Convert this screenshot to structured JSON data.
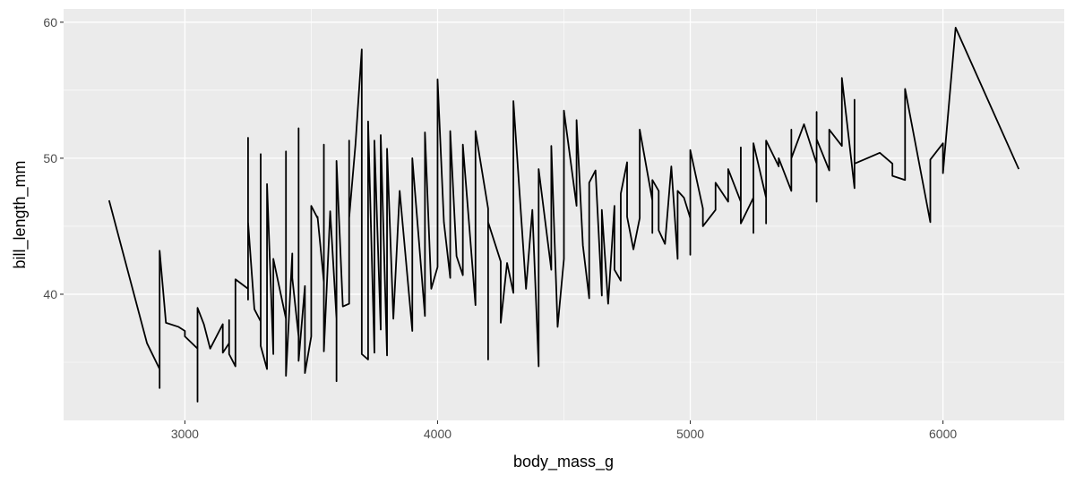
{
  "chart_data": {
    "type": "line",
    "xlabel": "body_mass_g",
    "ylabel": "bill_length_mm",
    "color": "#000000",
    "xlim": [
      2520,
      6480
    ],
    "xticks": [
      3000,
      4000,
      5000,
      6000
    ],
    "x_minor": [
      3500,
      4500,
      5500
    ],
    "ylim": [
      30.725,
      60.975
    ],
    "yticks": [
      40,
      50,
      60
    ],
    "y_minor": [
      35,
      45,
      55
    ],
    "grid": true,
    "x": [
      2700,
      2850,
      2900,
      2900,
      2900,
      2925,
      2975,
      3000,
      3000,
      3050,
      3050,
      3050,
      3075,
      3100,
      3150,
      3150,
      3175,
      3175,
      3175,
      3200,
      3200,
      3250,
      3250,
      3250,
      3250,
      3275,
      3300,
      3300,
      3300,
      3325,
      3325,
      3350,
      3350,
      3400,
      3400,
      3400,
      3425,
      3425,
      3450,
      3450,
      3450,
      3475,
      3475,
      3500,
      3500,
      3525,
      3525,
      3550,
      3550,
      3550,
      3575,
      3600,
      3600,
      3600,
      3625,
      3650,
      3650,
      3650,
      3675,
      3700,
      3700,
      3725,
      3725,
      3750,
      3750,
      3775,
      3775,
      3800,
      3800,
      3825,
      3850,
      3900,
      3900,
      3950,
      3950,
      3975,
      4000,
      4000,
      4025,
      4050,
      4050,
      4075,
      4100,
      4100,
      4150,
      4150,
      4200,
      4200,
      4200,
      4250,
      4250,
      4275,
      4300,
      4300,
      4350,
      4375,
      4400,
      4400,
      4450,
      4450,
      4475,
      4500,
      4500,
      4550,
      4550,
      4575,
      4600,
      4600,
      4625,
      4650,
      4650,
      4675,
      4700,
      4700,
      4725,
      4725,
      4750,
      4750,
      4775,
      4800,
      4800,
      4850,
      4850,
      4850,
      4875,
      4875,
      4900,
      4925,
      4950,
      4950,
      4975,
      5000,
      5000,
      5000,
      5050,
      5050,
      5100,
      5100,
      5150,
      5150,
      5200,
      5200,
      5200,
      5250,
      5250,
      5250,
      5300,
      5300,
      5300,
      5350,
      5350,
      5400,
      5400,
      5400,
      5450,
      5500,
      5500,
      5500,
      5500,
      5550,
      5550,
      5600,
      5600,
      5650,
      5650,
      5650,
      5700,
      5750,
      5800,
      5800,
      5850,
      5850,
      5950,
      5950,
      6000,
      6000,
      6050,
      6300
    ],
    "values": [
      46.9,
      36.4,
      34.5,
      33.1,
      43.2,
      37.9,
      37.6,
      37.3,
      36.9,
      36.0,
      32.1,
      39.0,
      37.8,
      36.0,
      37.8,
      35.7,
      36.4,
      38.1,
      35.6,
      34.7,
      41.1,
      40.4,
      51.5,
      39.6,
      45.3,
      38.9,
      38.0,
      50.3,
      36.2,
      34.5,
      48.1,
      35.6,
      42.6,
      38.2,
      50.5,
      34.0,
      43.0,
      41.2,
      36.9,
      52.2,
      35.1,
      40.6,
      34.2,
      36.9,
      46.5,
      45.6,
      45.7,
      40.9,
      51.0,
      35.8,
      46.1,
      38.2,
      33.6,
      49.8,
      39.1,
      39.3,
      51.3,
      45.6,
      51.0,
      58.0,
      35.6,
      35.2,
      52.7,
      35.7,
      51.3,
      37.4,
      51.7,
      35.5,
      50.7,
      38.2,
      47.6,
      37.3,
      50.0,
      38.4,
      51.9,
      40.4,
      42.0,
      55.8,
      45.3,
      41.2,
      52.0,
      42.8,
      41.4,
      51.0,
      39.2,
      52.0,
      46.3,
      35.2,
      45.3,
      42.4,
      37.9,
      42.3,
      40.1,
      54.2,
      40.4,
      46.2,
      34.7,
      49.2,
      41.8,
      50.9,
      37.6,
      42.6,
      53.5,
      46.5,
      52.8,
      43.6,
      39.7,
      48.2,
      49.1,
      39.9,
      46.2,
      39.3,
      46.5,
      41.8,
      41.0,
      47.4,
      49.7,
      45.7,
      43.3,
      45.6,
      52.1,
      46.9,
      44.5,
      48.4,
      47.6,
      44.7,
      43.7,
      49.4,
      42.6,
      47.6,
      47.1,
      45.6,
      42.9,
      50.6,
      46.3,
      45.0,
      46.2,
      48.2,
      46.8,
      49.2,
      46.8,
      50.8,
      45.2,
      47.1,
      44.5,
      51.1,
      47.1,
      45.2,
      51.3,
      49.4,
      50.0,
      47.6,
      52.1,
      50.0,
      52.5,
      49.6,
      46.8,
      53.4,
      51.4,
      49.1,
      52.1,
      50.9,
      55.9,
      47.8,
      54.3,
      49.6,
      50.0,
      50.4,
      49.6,
      48.7,
      48.4,
      55.1,
      45.3,
      49.9,
      51.1,
      48.9,
      59.6,
      49.2
    ]
  }
}
